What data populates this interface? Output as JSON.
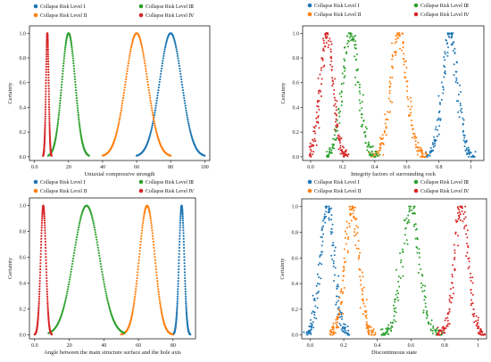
{
  "colors": {
    "I": "#1f77b4",
    "II": "#ff7f0e",
    "III": "#2ca02c",
    "IV": "#d62728"
  },
  "legend_labels": {
    "I": "Collapse Risk Level Ⅰ",
    "II": "Collapse Risk Level Ⅱ",
    "III": "Collapse Risk Level Ⅲ",
    "IV": "Collapse Risk Level Ⅳ"
  },
  "chart_data": [
    {
      "type": "scatter",
      "xlabel": "Uniaxial compressive strength",
      "ylabel": "Certainty",
      "xlim": [
        -3,
        103
      ],
      "ylim": [
        -0.03,
        1.06
      ],
      "xticks": [
        0,
        20,
        40,
        60,
        80,
        100
      ],
      "yticks": [
        0.0,
        0.2,
        0.4,
        0.6,
        0.8,
        1.0
      ],
      "legend": "top",
      "series": [
        {
          "name": "Collapse Risk Level Ⅰ",
          "level": "I",
          "mean": 80,
          "sd": 6.5,
          "range": [
            60,
            100
          ],
          "jitter": 0.0
        },
        {
          "name": "Collapse Risk Level Ⅱ",
          "level": "II",
          "mean": 60,
          "sd": 6.5,
          "range": [
            40,
            80
          ],
          "jitter": 0.0
        },
        {
          "name": "Collapse Risk Level Ⅲ",
          "level": "III",
          "mean": 20,
          "sd": 3.9,
          "range": [
            8,
            32
          ],
          "jitter": 0.0
        },
        {
          "name": "Collapse Risk Level Ⅳ",
          "level": "IV",
          "mean": 7.5,
          "sd": 0.8,
          "range": [
            5,
            10
          ],
          "jitter": 0.0
        }
      ]
    },
    {
      "type": "scatter",
      "xlabel": "Integrity factors of surrounding rock",
      "ylabel": "Certainty",
      "xlim": [
        -0.05,
        1.08
      ],
      "ylim": [
        -0.03,
        1.06
      ],
      "xticks": [
        0.0,
        0.2,
        0.4,
        0.6,
        0.8,
        1.0
      ],
      "yticks": [
        0.0,
        0.2,
        0.4,
        0.6,
        0.8,
        1.0
      ],
      "legend": "top",
      "series": [
        {
          "name": "Collapse Risk Level Ⅰ",
          "level": "I",
          "mean": 0.87,
          "sd": 0.045,
          "range": [
            0.72,
            1.02
          ],
          "jitter": 0.03
        },
        {
          "name": "Collapse Risk Level Ⅱ",
          "level": "II",
          "mean": 0.55,
          "sd": 0.05,
          "range": [
            0.38,
            0.72
          ],
          "jitter": 0.03
        },
        {
          "name": "Collapse Risk Level Ⅲ",
          "level": "III",
          "mean": 0.25,
          "sd": 0.05,
          "range": [
            0.1,
            0.42
          ],
          "jitter": 0.03
        },
        {
          "name": "Collapse Risk Level Ⅳ",
          "level": "IV",
          "mean": 0.1,
          "sd": 0.04,
          "range": [
            -0.01,
            0.23
          ],
          "jitter": 0.03
        }
      ]
    },
    {
      "type": "scatter",
      "xlabel": "Angle between the main structure surface and the hole axis",
      "ylabel": "Certainty",
      "xlim": [
        -3,
        93
      ],
      "ylim": [
        -0.03,
        1.06
      ],
      "xticks": [
        0,
        20,
        40,
        60,
        80
      ],
      "yticks": [
        0.0,
        0.2,
        0.4,
        0.6,
        0.8,
        1.0
      ],
      "legend": "top",
      "series": [
        {
          "name": "Collapse Risk Level Ⅰ",
          "level": "I",
          "mean": 85,
          "sd": 1.5,
          "range": [
            80,
            90
          ],
          "jitter": 0.0
        },
        {
          "name": "Collapse Risk Level Ⅱ",
          "level": "II",
          "mean": 65,
          "sd": 4.5,
          "range": [
            50,
            80
          ],
          "jitter": 0.0
        },
        {
          "name": "Collapse Risk Level Ⅲ",
          "level": "III",
          "mean": 30,
          "sd": 7.5,
          "range": [
            8,
            52
          ],
          "jitter": 0.0
        },
        {
          "name": "Collapse Risk Level Ⅳ",
          "level": "IV",
          "mean": 5,
          "sd": 1.5,
          "range": [
            0,
            10
          ],
          "jitter": 0.0
        }
      ]
    },
    {
      "type": "scatter",
      "xlabel": "Discontinuous state",
      "ylabel": "Certainty",
      "xlim": [
        -0.05,
        1.05
      ],
      "ylim": [
        -0.03,
        1.06
      ],
      "xticks": [
        0.0,
        0.2,
        0.4,
        0.6,
        0.8,
        1.0
      ],
      "yticks": [
        0.0,
        0.2,
        0.4,
        0.6,
        0.8,
        1.0
      ],
      "legend": "top",
      "series": [
        {
          "name": "Collapse Risk Level Ⅰ",
          "level": "I",
          "mean": 0.1,
          "sd": 0.04,
          "range": [
            -0.02,
            0.23
          ],
          "jitter": 0.03
        },
        {
          "name": "Collapse Risk Level Ⅱ",
          "level": "II",
          "mean": 0.25,
          "sd": 0.04,
          "range": [
            0.12,
            0.38
          ],
          "jitter": 0.03
        },
        {
          "name": "Collapse Risk Level Ⅲ",
          "level": "III",
          "mean": 0.6,
          "sd": 0.05,
          "range": [
            0.42,
            0.78
          ],
          "jitter": 0.03
        },
        {
          "name": "Collapse Risk Level Ⅳ",
          "level": "IV",
          "mean": 0.9,
          "sd": 0.04,
          "range": [
            0.76,
            1.04
          ],
          "jitter": 0.03
        }
      ]
    }
  ]
}
